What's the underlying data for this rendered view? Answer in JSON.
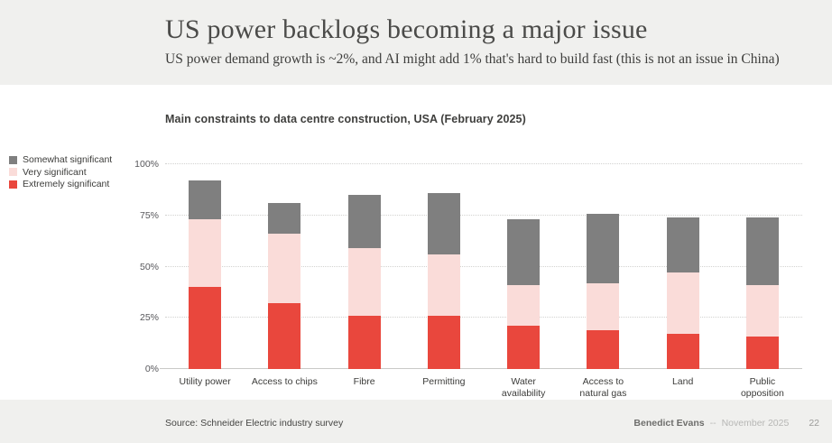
{
  "header": {
    "title": "US power backlogs becoming a major issue",
    "subtitle": "US power demand growth is ~2%, and AI might add 1% that's hard to build fast (this is not an issue in China)"
  },
  "chart_data": {
    "type": "bar",
    "subtype": "stacked",
    "title": "Main constraints to data centre construction, USA (February 2025)",
    "categories": [
      "Utility power",
      "Access to chips",
      "Fibre",
      "Permitting",
      "Water\navailability",
      "Access to\nnatural gas",
      "Land",
      "Public\nopposition"
    ],
    "series": [
      {
        "name": "Extremely significant",
        "color": "#e9473d",
        "values": [
          40,
          32,
          26,
          26,
          21,
          19,
          17,
          16
        ]
      },
      {
        "name": "Very significant",
        "color": "#fadcd9",
        "values": [
          33,
          34,
          33,
          30,
          20,
          23,
          30,
          25
        ]
      },
      {
        "name": "Somewhat significant",
        "color": "#7f7f7f",
        "values": [
          19,
          15,
          26,
          30,
          32,
          34,
          27,
          33
        ]
      }
    ],
    "stack_totals": [
      92,
      81,
      85,
      86,
      73,
      76,
      74,
      74
    ],
    "xlabel": "",
    "ylabel": "",
    "ylim": [
      0,
      100
    ],
    "yticks": [
      {
        "value": 0,
        "label": "0%"
      },
      {
        "value": 25,
        "label": "25%"
      },
      {
        "value": 50,
        "label": "50%"
      },
      {
        "value": 75,
        "label": "75%"
      },
      {
        "value": 100,
        "label": "100%"
      }
    ],
    "grid": "horizontal-dotted",
    "legend_position": "left",
    "legend_order_top_to_bottom": [
      "Somewhat significant",
      "Very significant",
      "Extremely significant"
    ]
  },
  "footer": {
    "source": "Source: Schneider Electric industry survey",
    "author": "Benedict Evans",
    "separator": "--",
    "date": "November 2025",
    "page": "22"
  }
}
